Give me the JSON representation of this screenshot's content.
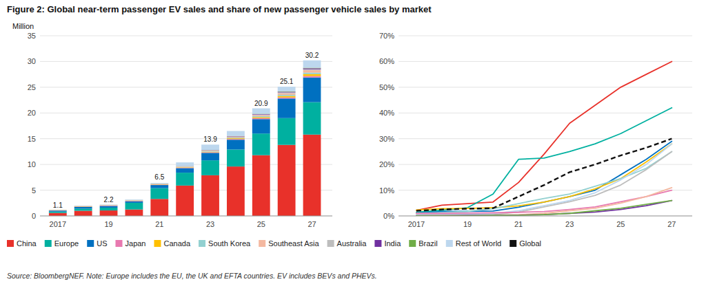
{
  "chart_data": [
    {
      "type": "bar",
      "stacked": true,
      "title": "Figure 2: Global near-term passenger EV sales and share of new passenger vehicle sales by market",
      "ylabel": "Million",
      "x": [
        2017,
        2018,
        2019,
        2020,
        2021,
        2022,
        2023,
        2024,
        2025,
        2026,
        2027
      ],
      "xlim": [
        2016.3,
        2027.8
      ],
      "xticks": [
        2017,
        {
          "value": 2019,
          "label": "19"
        },
        {
          "value": 2021,
          "label": "21"
        },
        {
          "value": 2023,
          "label": "23"
        },
        {
          "value": 2025,
          "label": "25"
        },
        {
          "value": 2027,
          "label": "27"
        }
      ],
      "ylim": [
        0,
        35
      ],
      "yticks": [
        0,
        5,
        10,
        15,
        20,
        25,
        30,
        35
      ],
      "grid": true,
      "series": [
        {
          "name": "China",
          "color": "#e8312a",
          "values": [
            0.58,
            1.0,
            1.06,
            1.25,
            3.3,
            5.9,
            7.9,
            9.6,
            11.8,
            13.8,
            15.8
          ]
        },
        {
          "name": "Europe",
          "color": "#00b0a0",
          "values": [
            0.26,
            0.42,
            0.55,
            1.3,
            2.1,
            2.5,
            2.9,
            3.3,
            4.2,
            5.2,
            6.3
          ]
        },
        {
          "name": "US",
          "color": "#0070c0",
          "values": [
            0.19,
            0.34,
            0.32,
            0.29,
            0.6,
            0.88,
            1.45,
            1.9,
            2.8,
            3.8,
            4.8
          ]
        },
        {
          "name": "Japan",
          "color": "#e879b0",
          "values": [
            0.05,
            0.06,
            0.07,
            0.08,
            0.09,
            0.1,
            0.12,
            0.14,
            0.18,
            0.22,
            0.28
          ]
        },
        {
          "name": "Canada",
          "color": "#ffc000",
          "values": [
            0.04,
            0.05,
            0.05,
            0.06,
            0.07,
            0.08,
            0.1,
            0.14,
            0.2,
            0.28,
            0.38
          ]
        },
        {
          "name": "South Korea",
          "color": "#92d0d0",
          "values": [
            0.03,
            0.04,
            0.05,
            0.06,
            0.07,
            0.09,
            0.11,
            0.14,
            0.18,
            0.22,
            0.28
          ]
        },
        {
          "name": "Southeast Asia",
          "color": "#f4b8a0",
          "values": [
            0.01,
            0.02,
            0.02,
            0.03,
            0.04,
            0.06,
            0.1,
            0.14,
            0.22,
            0.32,
            0.46
          ]
        },
        {
          "name": "Australia",
          "color": "#bdbdbd",
          "values": [
            0.01,
            0.01,
            0.01,
            0.02,
            0.02,
            0.03,
            0.05,
            0.07,
            0.11,
            0.15,
            0.2
          ]
        },
        {
          "name": "India",
          "color": "#7030a0",
          "values": [
            0.01,
            0.01,
            0.01,
            0.01,
            0.02,
            0.03,
            0.05,
            0.06,
            0.09,
            0.13,
            0.18
          ]
        },
        {
          "name": "Brazil",
          "color": "#70ad47",
          "values": [
            0.01,
            0.01,
            0.01,
            0.01,
            0.01,
            0.02,
            0.03,
            0.04,
            0.06,
            0.08,
            0.1
          ]
        },
        {
          "name": "Rest of World",
          "color": "#bdd7ee",
          "values": [
            0.01,
            0.04,
            0.05,
            0.09,
            0.08,
            0.71,
            1.04,
            0.97,
            1.06,
            0.9,
            1.44
          ]
        }
      ],
      "annotations": [
        {
          "x": 2017,
          "y": 1.1,
          "text": "1.1"
        },
        {
          "x": 2019,
          "y": 2.2,
          "text": "2.2"
        },
        {
          "x": 2021,
          "y": 6.5,
          "text": "6.5"
        },
        {
          "x": 2023,
          "y": 13.9,
          "text": "13.9"
        },
        {
          "x": 2025,
          "y": 20.9,
          "text": "20.9"
        },
        {
          "x": 2026,
          "y": 25.1,
          "text": "25.1"
        },
        {
          "x": 2027,
          "y": 30.2,
          "text": "30.2"
        },
        {
          "text": "Source: BloombergNEF. Note: Europe includes the EU, the UK and EFTA countries. EV includes BEVs and PHEVs."
        }
      ]
    },
    {
      "type": "line",
      "x": [
        2017,
        2018,
        2019,
        2020,
        2021,
        2022,
        2023,
        2024,
        2025,
        2026,
        2027
      ],
      "xlim": [
        2016.3,
        2027.8
      ],
      "xticks": [
        2017,
        {
          "value": 2019,
          "label": "19"
        },
        {
          "value": 2021,
          "label": "21"
        },
        {
          "value": 2023,
          "label": "23"
        },
        {
          "value": 2025,
          "label": "25"
        },
        {
          "value": 2027,
          "label": "27"
        }
      ],
      "ylim": [
        0,
        70
      ],
      "yticks": [
        {
          "value": 0,
          "label": "0%"
        },
        {
          "value": 10,
          "label": "10%"
        },
        {
          "value": 20,
          "label": "20%"
        },
        {
          "value": 30,
          "label": "30%"
        },
        {
          "value": 40,
          "label": "40%"
        },
        {
          "value": 50,
          "label": "50%"
        },
        {
          "value": 60,
          "label": "60%"
        },
        {
          "value": 70,
          "label": "70%"
        }
      ],
      "grid": true,
      "series": [
        {
          "name": "China",
          "color": "#e8312a",
          "values": [
            2.2,
            4.2,
            4.8,
            5.4,
            13.0,
            24.0,
            36.0,
            43.0,
            50.0,
            55.0,
            60.0
          ]
        },
        {
          "name": "Europe",
          "color": "#00b0a0",
          "values": [
            1.4,
            2.2,
            3.2,
            8.5,
            22.0,
            22.5,
            25.0,
            28.0,
            32.0,
            37.0,
            42.0
          ]
        },
        {
          "name": "US",
          "color": "#0070c0",
          "values": [
            1.1,
            1.7,
            1.8,
            1.9,
            3.4,
            5.4,
            7.5,
            10.0,
            16.0,
            22.0,
            29.0
          ]
        },
        {
          "name": "Canada",
          "color": "#ffc000",
          "values": [
            2.3,
            2.8,
            2.9,
            3.2,
            3.9,
            5.4,
            7.5,
            10.5,
            14.5,
            21.0,
            28.0
          ]
        },
        {
          "name": "South Korea",
          "color": "#92d0d0",
          "values": [
            1.0,
            1.3,
            1.8,
            2.8,
            4.8,
            6.8,
            8.5,
            11.5,
            14.5,
            18.5,
            25.0
          ]
        },
        {
          "name": "Australia",
          "color": "#bdbdbd",
          "values": [
            0.2,
            0.3,
            0.5,
            0.5,
            1.5,
            3.5,
            5.5,
            8.0,
            12.0,
            18.0,
            25.0
          ]
        },
        {
          "name": "Rest of World",
          "color": "#bdd7ee",
          "values": [
            0.5,
            0.7,
            0.8,
            0.9,
            2.0,
            4.0,
            6.0,
            9.0,
            14.0,
            20.0,
            28.0
          ]
        },
        {
          "name": "Japan",
          "color": "#e879b0",
          "values": [
            1.0,
            1.0,
            1.1,
            1.2,
            1.4,
            1.7,
            2.5,
            3.5,
            5.5,
            7.5,
            10.0
          ]
        },
        {
          "name": "Southeast Asia",
          "color": "#f4b8a0",
          "values": [
            0.1,
            0.2,
            0.3,
            0.3,
            0.5,
            1.0,
            2.0,
            3.0,
            5.0,
            7.5,
            11.0
          ]
        },
        {
          "name": "India",
          "color": "#7030a0",
          "values": [
            0.1,
            0.1,
            0.2,
            0.2,
            0.3,
            0.5,
            1.0,
            1.5,
            2.5,
            4.0,
            6.0
          ]
        },
        {
          "name": "Brazil",
          "color": "#70ad47",
          "values": [
            0.1,
            0.1,
            0.1,
            0.2,
            0.2,
            0.5,
            1.0,
            2.0,
            3.0,
            4.5,
            6.0
          ]
        },
        {
          "name": "Global",
          "color": "#111111",
          "line_style": "dashed",
          "values": [
            2.0,
            2.5,
            2.8,
            3.0,
            7.5,
            12.0,
            17.0,
            20.0,
            23.5,
            26.5,
            30.0
          ]
        }
      ]
    }
  ]
}
